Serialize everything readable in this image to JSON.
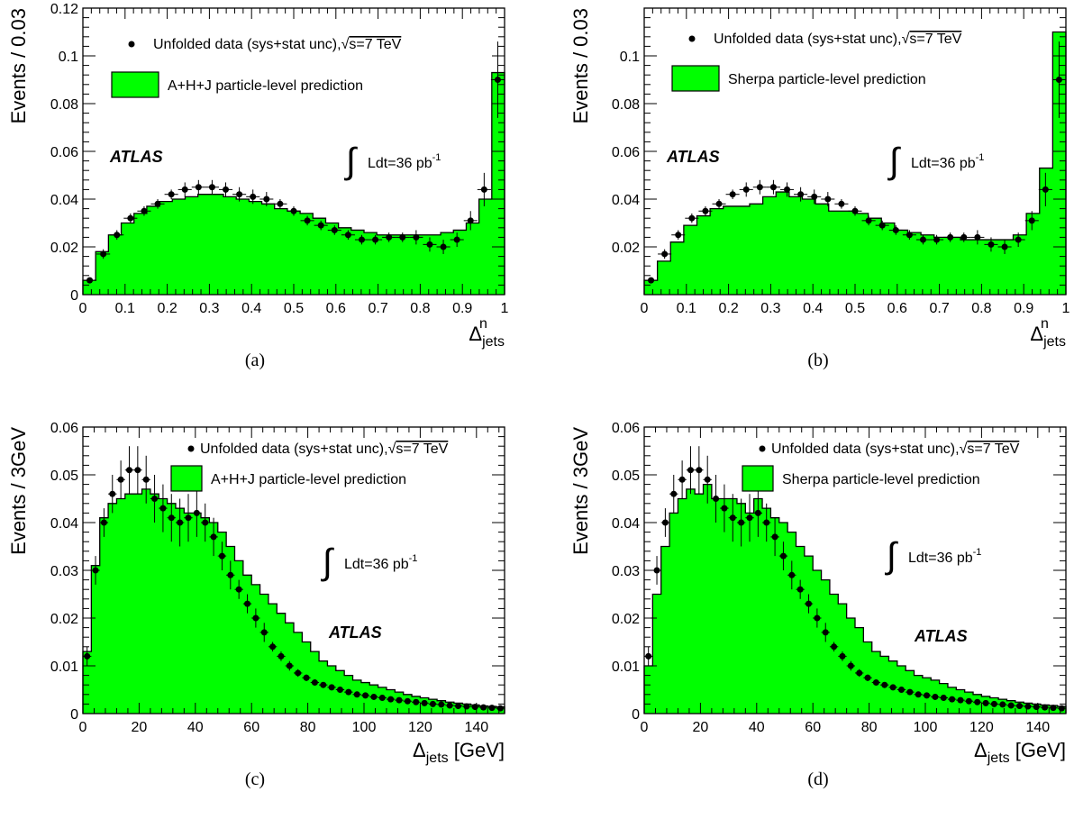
{
  "chart_data": [
    {
      "panel": "a",
      "type": "bar",
      "caption": "(a)",
      "ylabel": "Events / 0.03",
      "xlabel_symbol": "Δ",
      "xlabel_sub": "jets",
      "xlabel_sup": "n",
      "xlabel_unit": "",
      "ylim": [
        0,
        0.12
      ],
      "xlim": [
        0,
        1
      ],
      "xticks": [
        "0",
        "0.1",
        "0.2",
        "0.3",
        "0.4",
        "0.5",
        "0.6",
        "0.7",
        "0.8",
        "0.9",
        "1"
      ],
      "yticks": [
        "0",
        "0.02",
        "0.04",
        "0.06",
        "0.08",
        "0.1",
        "0.12"
      ],
      "atlas_label": "ATLAS",
      "lumi_text": "Ldt=36 pb",
      "lumi_sup": "-1",
      "legend": {
        "data_label": "Unfolded data (sys+stat unc),",
        "energy_label": "s=7 TeV",
        "mc_label": "A+H+J particle-level prediction"
      },
      "series": [
        {
          "name": "A+H+J particle-level prediction",
          "kind": "histogram",
          "values": [
            0.006,
            0.018,
            0.025,
            0.03,
            0.034,
            0.037,
            0.039,
            0.04,
            0.041,
            0.042,
            0.042,
            0.041,
            0.04,
            0.039,
            0.038,
            0.036,
            0.035,
            0.034,
            0.032,
            0.03,
            0.028,
            0.027,
            0.026,
            0.025,
            0.025,
            0.025,
            0.025,
            0.025,
            0.026,
            0.027,
            0.03,
            0.04,
            0.093
          ]
        },
        {
          "name": "Unfolded data (sys+stat unc)",
          "kind": "points",
          "values": [
            0.006,
            0.017,
            0.025,
            0.032,
            0.035,
            0.038,
            0.042,
            0.044,
            0.045,
            0.045,
            0.044,
            0.042,
            0.041,
            0.04,
            0.038,
            0.035,
            0.031,
            0.029,
            0.027,
            0.025,
            0.023,
            0.023,
            0.024,
            0.024,
            0.024,
            0.021,
            0.02,
            0.023,
            0.031,
            0.044,
            0.09
          ],
          "errors": [
            0.001,
            0.002,
            0.002,
            0.002,
            0.002,
            0.002,
            0.002,
            0.003,
            0.003,
            0.003,
            0.003,
            0.003,
            0.003,
            0.003,
            0.002,
            0.002,
            0.002,
            0.002,
            0.002,
            0.002,
            0.002,
            0.002,
            0.002,
            0.002,
            0.003,
            0.003,
            0.003,
            0.003,
            0.004,
            0.007,
            0.016
          ]
        }
      ]
    },
    {
      "panel": "b",
      "type": "bar",
      "caption": "(b)",
      "ylabel": "Events / 0.03",
      "xlabel_symbol": "Δ",
      "xlabel_sub": "jets",
      "xlabel_sup": "n",
      "xlabel_unit": "",
      "ylim": [
        0,
        0.12
      ],
      "xlim": [
        0,
        1
      ],
      "xticks": [
        "0",
        "0.1",
        "0.2",
        "0.3",
        "0.4",
        "0.5",
        "0.6",
        "0.7",
        "0.8",
        "0.9",
        "1"
      ],
      "yticks": [
        "0.02",
        "0.04",
        "0.06",
        "0.08",
        "0.1"
      ],
      "atlas_label": "ATLAS",
      "lumi_text": "Ldt=36 pb",
      "lumi_sup": "-1",
      "legend": {
        "data_label": "Unfolded data (sys+stat unc),",
        "energy_label": "s=7 TeV",
        "mc_label": "Sherpa particle-level prediction"
      },
      "series": [
        {
          "name": "Sherpa particle-level prediction",
          "kind": "histogram",
          "values": [
            0.006,
            0.014,
            0.022,
            0.029,
            0.033,
            0.036,
            0.037,
            0.037,
            0.038,
            0.041,
            0.043,
            0.041,
            0.04,
            0.038,
            0.035,
            0.035,
            0.034,
            0.032,
            0.03,
            0.027,
            0.026,
            0.025,
            0.024,
            0.024,
            0.023,
            0.023,
            0.023,
            0.023,
            0.025,
            0.034,
            0.053,
            0.11
          ]
        },
        {
          "name": "Unfolded data (sys+stat unc)",
          "kind": "points",
          "values": [
            0.006,
            0.017,
            0.025,
            0.032,
            0.035,
            0.038,
            0.042,
            0.044,
            0.045,
            0.045,
            0.044,
            0.042,
            0.041,
            0.04,
            0.038,
            0.035,
            0.031,
            0.029,
            0.027,
            0.025,
            0.023,
            0.023,
            0.024,
            0.024,
            0.024,
            0.021,
            0.02,
            0.023,
            0.031,
            0.044,
            0.09
          ],
          "errors": [
            0.001,
            0.002,
            0.002,
            0.002,
            0.002,
            0.002,
            0.002,
            0.003,
            0.003,
            0.003,
            0.003,
            0.003,
            0.003,
            0.003,
            0.002,
            0.002,
            0.002,
            0.002,
            0.002,
            0.002,
            0.002,
            0.002,
            0.002,
            0.002,
            0.003,
            0.003,
            0.003,
            0.003,
            0.004,
            0.007,
            0.016
          ]
        }
      ]
    },
    {
      "panel": "c",
      "type": "bar",
      "caption": "(c)",
      "ylabel": "Events / 3GeV",
      "xlabel_symbol": "Δ",
      "xlabel_sub": "jets",
      "xlabel_sup": "",
      "xlabel_unit": " [GeV]",
      "ylim": [
        0,
        0.06
      ],
      "xlim": [
        0,
        150
      ],
      "xticks": [
        "0",
        "20",
        "40",
        "60",
        "80",
        "100",
        "120",
        "140"
      ],
      "yticks": [
        "0",
        "0.01",
        "0.02",
        "0.03",
        "0.04",
        "0.05",
        "0.06"
      ],
      "atlas_label": "ATLAS",
      "lumi_text": "Ldt=36 pb",
      "lumi_sup": "-1",
      "legend": {
        "data_label": "Unfolded data (sys+stat unc),",
        "energy_label": "s=7 TeV",
        "mc_label": "A+H+J particle-level prediction"
      },
      "series": [
        {
          "name": "A+H+J particle-level prediction",
          "kind": "histogram",
          "values": [
            0.013,
            0.031,
            0.041,
            0.044,
            0.045,
            0.046,
            0.046,
            0.047,
            0.046,
            0.045,
            0.044,
            0.043,
            0.042,
            0.042,
            0.041,
            0.04,
            0.038,
            0.035,
            0.032,
            0.029,
            0.027,
            0.025,
            0.023,
            0.021,
            0.019,
            0.017,
            0.015,
            0.013,
            0.011,
            0.01,
            0.009,
            0.008,
            0.007,
            0.0065,
            0.006,
            0.0055,
            0.005,
            0.0045,
            0.004,
            0.0036,
            0.0033,
            0.003,
            0.0027,
            0.0024,
            0.0022,
            0.002,
            0.0018,
            0.0016,
            0.0015,
            0.0014
          ]
        },
        {
          "name": "Unfolded data (sys+stat unc)",
          "kind": "points",
          "values": [
            0.012,
            0.03,
            0.04,
            0.046,
            0.049,
            0.051,
            0.051,
            0.049,
            0.045,
            0.043,
            0.041,
            0.04,
            0.041,
            0.042,
            0.04,
            0.037,
            0.033,
            0.029,
            0.026,
            0.023,
            0.02,
            0.017,
            0.014,
            0.012,
            0.01,
            0.0085,
            0.0075,
            0.0065,
            0.006,
            0.0055,
            0.005,
            0.0045,
            0.004,
            0.0038,
            0.0035,
            0.0033,
            0.003,
            0.0028,
            0.0026,
            0.0024,
            0.0022,
            0.002,
            0.0019,
            0.0017,
            0.0016,
            0.0015,
            0.0014,
            0.0013,
            0.0012,
            0.0011
          ],
          "errors": [
            0.002,
            0.003,
            0.003,
            0.004,
            0.004,
            0.005,
            0.005,
            0.005,
            0.005,
            0.005,
            0.005,
            0.005,
            0.005,
            0.005,
            0.004,
            0.004,
            0.003,
            0.003,
            0.002,
            0.002,
            0.002,
            0.002,
            0.001,
            0.001,
            0.001,
            0.0008,
            0.0007,
            0.0006,
            0.0006,
            0.0005,
            0.0005,
            0.0004,
            0.0004,
            0.0004,
            0.0003,
            0.0003,
            0.0003,
            0.0003,
            0.0003,
            0.0002,
            0.0002,
            0.0002,
            0.0002,
            0.0002,
            0.0002,
            0.0002,
            0.0002,
            0.0001,
            0.0001,
            0.0001
          ]
        }
      ]
    },
    {
      "panel": "d",
      "type": "bar",
      "caption": "(d)",
      "ylabel": "Events / 3GeV",
      "xlabel_symbol": "Δ",
      "xlabel_sub": "jets",
      "xlabel_sup": "",
      "xlabel_unit": " [GeV]",
      "ylim": [
        0,
        0.06
      ],
      "xlim": [
        0,
        150
      ],
      "xticks": [
        "0",
        "20",
        "40",
        "60",
        "80",
        "100",
        "120",
        "140"
      ],
      "yticks": [
        "0",
        "0.01",
        "0.02",
        "0.03",
        "0.04",
        "0.05",
        "0.06"
      ],
      "atlas_label": "ATLAS",
      "lumi_text": "Ldt=36 pb",
      "lumi_sup": "-1",
      "legend": {
        "data_label": "Unfolded data (sys+stat unc),",
        "energy_label": "s=7 TeV",
        "mc_label": "Sherpa particle-level prediction"
      },
      "series": [
        {
          "name": "Sherpa particle-level prediction",
          "kind": "histogram",
          "values": [
            0.01,
            0.025,
            0.035,
            0.042,
            0.045,
            0.047,
            0.046,
            0.048,
            0.045,
            0.045,
            0.045,
            0.044,
            0.042,
            0.045,
            0.043,
            0.041,
            0.04,
            0.038,
            0.035,
            0.033,
            0.03,
            0.028,
            0.025,
            0.023,
            0.02,
            0.018,
            0.015,
            0.013,
            0.012,
            0.011,
            0.01,
            0.009,
            0.008,
            0.0075,
            0.007,
            0.0063,
            0.0055,
            0.005,
            0.0045,
            0.004,
            0.0036,
            0.0033,
            0.003,
            0.0027,
            0.0024,
            0.0022,
            0.002,
            0.0018,
            0.0017,
            0.0015
          ]
        },
        {
          "name": "Unfolded data (sys+stat unc)",
          "kind": "points",
          "values": [
            0.012,
            0.03,
            0.04,
            0.046,
            0.049,
            0.051,
            0.051,
            0.049,
            0.045,
            0.043,
            0.041,
            0.04,
            0.041,
            0.042,
            0.04,
            0.037,
            0.033,
            0.029,
            0.026,
            0.023,
            0.02,
            0.017,
            0.014,
            0.012,
            0.01,
            0.0085,
            0.0075,
            0.0065,
            0.006,
            0.0055,
            0.005,
            0.0045,
            0.004,
            0.0038,
            0.0035,
            0.0033,
            0.003,
            0.0028,
            0.0026,
            0.0024,
            0.0022,
            0.002,
            0.0019,
            0.0017,
            0.0016,
            0.0015,
            0.0014,
            0.0013,
            0.0012,
            0.0011
          ],
          "errors": [
            0.002,
            0.003,
            0.003,
            0.004,
            0.004,
            0.005,
            0.005,
            0.005,
            0.005,
            0.005,
            0.005,
            0.005,
            0.005,
            0.005,
            0.004,
            0.004,
            0.003,
            0.003,
            0.002,
            0.002,
            0.002,
            0.002,
            0.001,
            0.001,
            0.001,
            0.0008,
            0.0007,
            0.0006,
            0.0006,
            0.0005,
            0.0005,
            0.0004,
            0.0004,
            0.0004,
            0.0003,
            0.0003,
            0.0003,
            0.0003,
            0.0003,
            0.0002,
            0.0002,
            0.0002,
            0.0002,
            0.0002,
            0.0002,
            0.0002,
            0.0002,
            0.0001,
            0.0001,
            0.0001
          ]
        }
      ]
    }
  ],
  "colors": {
    "histogram_fill": "#00ff00",
    "line": "#000000"
  }
}
